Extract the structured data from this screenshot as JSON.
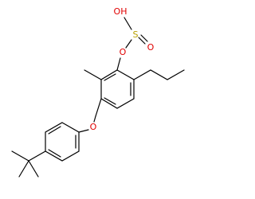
{
  "atoms": [
    {
      "label": "OH"
    },
    {
      "label": "S"
    },
    {
      "label": "O"
    },
    {
      "label": "O"
    },
    {
      "label": "O"
    }
  ]
}
